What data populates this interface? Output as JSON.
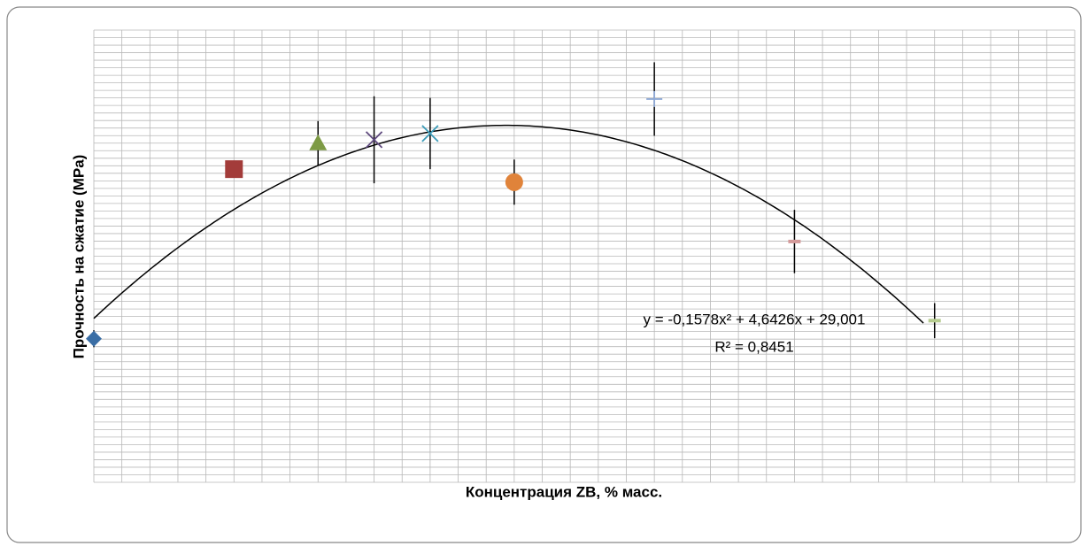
{
  "chart_data": {
    "type": "scatter",
    "xlabel": "Концентрация ZB, % масс.",
    "ylabel": "Прочность на сжатие (MPa)",
    "xlim": [
      0,
      35
    ],
    "ylim": [
      0,
      80
    ],
    "xticks": [
      0,
      1,
      2,
      3,
      4,
      5,
      6,
      7,
      8,
      9,
      10,
      11,
      12,
      13,
      14,
      15,
      16,
      17,
      18,
      19,
      20,
      21,
      22,
      23,
      24,
      25,
      26,
      27,
      28,
      29,
      30,
      31,
      32,
      33,
      34,
      35
    ],
    "yticks": [
      0,
      1.33,
      2.67,
      4,
      5.33,
      6.67,
      8,
      9.33,
      10.67,
      12,
      13.33,
      14.67,
      16,
      17.33,
      18.67,
      20,
      21.33,
      22.67,
      24,
      25.33,
      26.67,
      28,
      29.33,
      30.67,
      32,
      33.33,
      34.67,
      36,
      37.33,
      38.67,
      40,
      41.33,
      42.67,
      44,
      45.33,
      46.67,
      48,
      49.33,
      50.67,
      52,
      53.33,
      54.67,
      56,
      57.33,
      58.67,
      60,
      61.33,
      62.67,
      64,
      65.33,
      66.67,
      68,
      69.33,
      70.67,
      72,
      73.33,
      74.67,
      76,
      77.33,
      78.67,
      80
    ],
    "grid": true,
    "series": [
      {
        "marker": "diamond",
        "color": "#3a6ea5",
        "x": [
          0
        ],
        "values": [
          25.4
        ],
        "errors": [
          1.5
        ]
      },
      {
        "marker": "square",
        "color": "#a33c3a",
        "x": [
          5
        ],
        "values": [
          55.4
        ],
        "errors": [
          0
        ]
      },
      {
        "marker": "triangle",
        "color": "#7d9a45",
        "x": [
          8
        ],
        "values": [
          60.0
        ],
        "errors": [
          3.9
        ]
      },
      {
        "marker": "x",
        "color": "#5f4a7e",
        "x": [
          10
        ],
        "values": [
          60.6
        ],
        "errors": [
          7.7
        ]
      },
      {
        "marker": "x",
        "color": "#3c9bb8",
        "x": [
          12
        ],
        "values": [
          61.7
        ],
        "errors": [
          6.3
        ]
      },
      {
        "marker": "circle",
        "color": "#e0833a",
        "x": [
          15
        ],
        "values": [
          53.1
        ],
        "errors": [
          4.0
        ]
      },
      {
        "marker": "plus",
        "color": "#8ea9d6",
        "x": [
          20
        ],
        "values": [
          67.8
        ],
        "errors": [
          6.5
        ]
      },
      {
        "marker": "dash",
        "color": "#d49a9a",
        "x": [
          25
        ],
        "values": [
          42.6
        ],
        "errors": [
          5.6
        ]
      },
      {
        "marker": "dash",
        "color": "#b6cc8f",
        "x": [
          30
        ],
        "values": [
          28.6
        ],
        "errors": [
          3.1
        ]
      }
    ],
    "trendline": {
      "coefficients": [
        -0.1578,
        4.6426,
        29.001
      ],
      "x_end": 29.6,
      "equation": "y = -0,1578x² + 4,6426x + 29,001",
      "r2": "R² = 0,8451"
    }
  }
}
